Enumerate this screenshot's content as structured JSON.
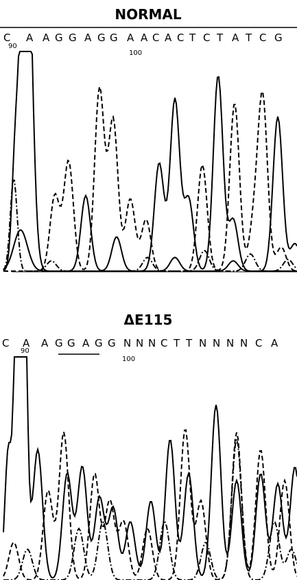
{
  "panels": [
    {
      "title": "NORMAL",
      "sequence": [
        "C",
        "A",
        "A",
        "G",
        "G",
        "A",
        "G",
        "G",
        "A",
        "A",
        "C",
        "A",
        "C",
        "T",
        "C",
        "T",
        "A",
        "T",
        "C",
        "G"
      ],
      "position_labels": [
        "90",
        "100"
      ]
    },
    {
      "title": "ΔE115",
      "sequence": [
        "C",
        "A",
        "A",
        "G",
        "G",
        "A",
        "G",
        "G",
        "N",
        "N",
        "N",
        "C",
        "T",
        "T",
        "N",
        "N",
        "N",
        "N",
        "C",
        "A"
      ],
      "position_labels": [
        "90",
        "100"
      ]
    }
  ]
}
